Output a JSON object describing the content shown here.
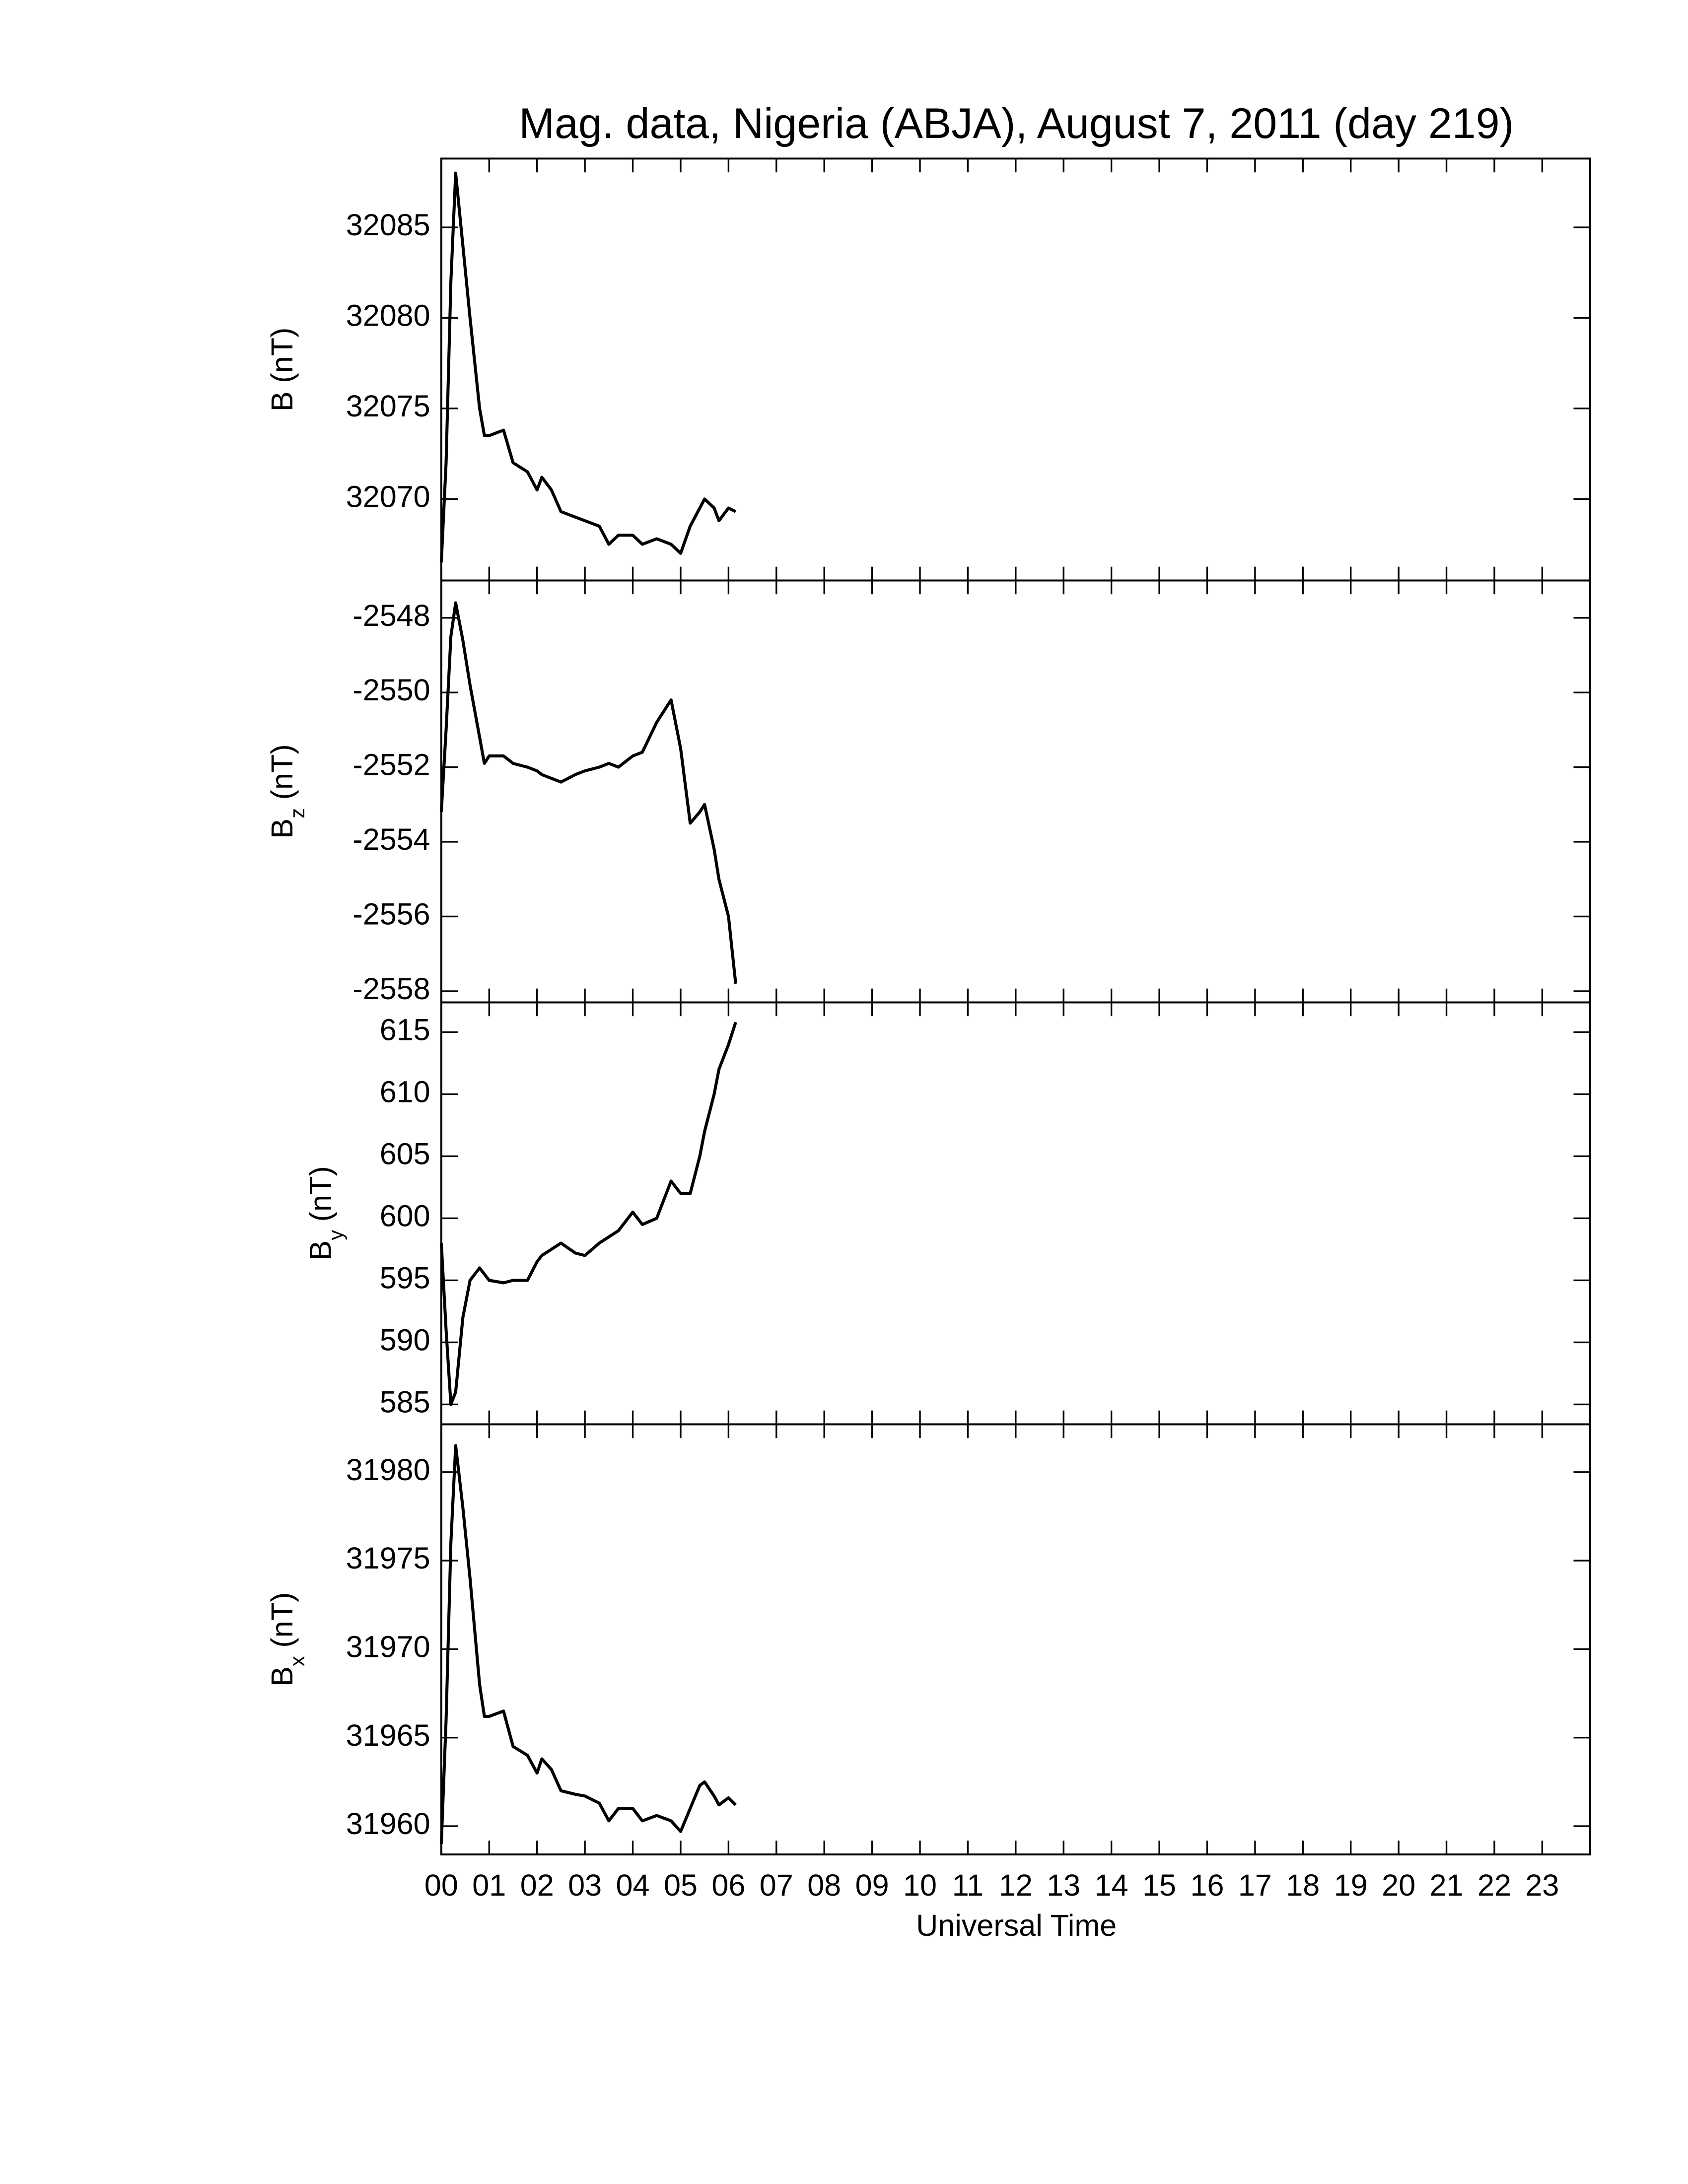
{
  "chart_data": [
    {
      "type": "line",
      "title": "Mag. data, Nigeria (ABJA), August 7, 2011 (day 219)",
      "ylabel": {
        "symbol": "B",
        "unit": "(nT)"
      },
      "x": [
        0,
        0.1,
        0.2,
        0.3,
        0.45,
        0.6,
        0.8,
        0.9,
        1.0,
        1.3,
        1.5,
        1.8,
        2.0,
        2.1,
        2.3,
        2.5,
        2.8,
        3.0,
        3.3,
        3.5,
        3.7,
        4.0,
        4.2,
        4.5,
        4.8,
        5.0,
        5.2,
        5.4,
        5.5,
        5.7,
        5.8,
        6.0,
        6.15
      ],
      "values": [
        32066.5,
        32072,
        32082,
        32088,
        32084,
        32080,
        32075,
        32073.5,
        32073.5,
        32073.8,
        32072,
        32071.5,
        32070.5,
        32071.2,
        32070.5,
        32069.3,
        32069,
        32068.8,
        32068.5,
        32067.5,
        32068,
        32068,
        32067.5,
        32067.8,
        32067.5,
        32067,
        32068.5,
        32069.5,
        32070,
        32069.5,
        32068.8,
        32069.5,
        32069.3
      ],
      "color": "#000000",
      "xlim": [
        0,
        24
      ],
      "ylim": [
        32065.5,
        32088.8
      ],
      "yticks": [
        32070,
        32075,
        32080,
        32085
      ]
    },
    {
      "type": "line",
      "ylabel": {
        "symbol": "B",
        "subscript": "z",
        "unit": "(nT)"
      },
      "x": [
        0,
        0.1,
        0.2,
        0.3,
        0.45,
        0.6,
        0.8,
        0.9,
        1.0,
        1.3,
        1.5,
        1.8,
        2.0,
        2.1,
        2.3,
        2.5,
        2.8,
        3.0,
        3.3,
        3.5,
        3.7,
        4.0,
        4.2,
        4.5,
        4.8,
        5.0,
        5.2,
        5.4,
        5.5,
        5.7,
        5.8,
        6.0,
        6.15
      ],
      "values": [
        -2553.2,
        -2551,
        -2548.5,
        -2547.6,
        -2548.6,
        -2549.8,
        -2551.2,
        -2551.9,
        -2551.7,
        -2551.7,
        -2551.9,
        -2552.0,
        -2552.1,
        -2552.2,
        -2552.3,
        -2552.4,
        -2552.2,
        -2552.1,
        -2552.0,
        -2551.9,
        -2552.0,
        -2551.7,
        -2551.6,
        -2550.8,
        -2550.2,
        -2551.5,
        -2553.5,
        -2553.2,
        -2553.0,
        -2554.2,
        -2555,
        -2556,
        -2557.8
      ],
      "color": "#000000",
      "xlim": [
        0,
        24
      ],
      "ylim": [
        -2558.3,
        -2547.0
      ],
      "yticks": [
        -2558,
        -2556,
        -2554,
        -2552,
        -2550,
        -2548
      ]
    },
    {
      "type": "line",
      "ylabel": {
        "symbol": "B",
        "subscript": "y",
        "unit": "(nT)"
      },
      "x": [
        0,
        0.1,
        0.2,
        0.3,
        0.45,
        0.6,
        0.8,
        0.9,
        1.0,
        1.3,
        1.5,
        1.8,
        2.0,
        2.1,
        2.3,
        2.5,
        2.8,
        3.0,
        3.3,
        3.5,
        3.7,
        4.0,
        4.2,
        4.5,
        4.8,
        5.0,
        5.2,
        5.4,
        5.5,
        5.7,
        5.8,
        6.0,
        6.15
      ],
      "values": [
        598,
        591,
        585,
        586,
        592,
        595,
        596,
        595.5,
        595,
        594.8,
        595,
        595,
        596.5,
        597,
        597.5,
        598,
        597.2,
        597,
        598,
        598.5,
        599,
        600.5,
        599.5,
        600,
        603,
        602,
        602,
        605,
        607,
        610,
        612,
        614,
        615.8
      ],
      "color": "#000000",
      "xlim": [
        0,
        24
      ],
      "ylim": [
        583.4,
        617.4
      ],
      "yticks": [
        585,
        590,
        595,
        600,
        605,
        610,
        615
      ]
    },
    {
      "type": "line",
      "ylabel": {
        "symbol": "B",
        "subscript": "x",
        "unit": "(nT)"
      },
      "xlabel": "Universal Time",
      "x": [
        0,
        0.1,
        0.2,
        0.3,
        0.45,
        0.6,
        0.8,
        0.9,
        1.0,
        1.3,
        1.5,
        1.8,
        2.0,
        2.1,
        2.3,
        2.5,
        2.8,
        3.0,
        3.3,
        3.5,
        3.7,
        4.0,
        4.2,
        4.5,
        4.8,
        5.0,
        5.2,
        5.4,
        5.5,
        5.7,
        5.8,
        6.0,
        6.15
      ],
      "values": [
        31959,
        31966,
        31976,
        31981.5,
        31978,
        31974,
        31968,
        31966.2,
        31966.2,
        31966.5,
        31964.5,
        31964,
        31963,
        31963.8,
        31963.2,
        31962,
        31961.8,
        31961.7,
        31961.3,
        31960.3,
        31961,
        31961,
        31960.3,
        31960.6,
        31960.3,
        31959.7,
        31961,
        31962.3,
        31962.5,
        31961.7,
        31961.2,
        31961.6,
        31961.2
      ],
      "color": "#000000",
      "xlim": [
        0,
        24
      ],
      "ylim": [
        31958.4,
        31982.7
      ],
      "yticks": [
        31960,
        31965,
        31970,
        31975,
        31980
      ],
      "xticks": [
        {
          "value": 0,
          "label": "00"
        },
        {
          "value": 1,
          "label": "01"
        },
        {
          "value": 2,
          "label": "02"
        },
        {
          "value": 3,
          "label": "03"
        },
        {
          "value": 4,
          "label": "04"
        },
        {
          "value": 5,
          "label": "05"
        },
        {
          "value": 6,
          "label": "06"
        },
        {
          "value": 7,
          "label": "07"
        },
        {
          "value": 8,
          "label": "08"
        },
        {
          "value": 9,
          "label": "09"
        },
        {
          "value": 10,
          "label": "10"
        },
        {
          "value": 11,
          "label": "11"
        },
        {
          "value": 12,
          "label": "12"
        },
        {
          "value": 13,
          "label": "13"
        },
        {
          "value": 14,
          "label": "14"
        },
        {
          "value": 15,
          "label": "15"
        },
        {
          "value": 16,
          "label": "16"
        },
        {
          "value": 17,
          "label": "17"
        },
        {
          "value": 18,
          "label": "18"
        },
        {
          "value": 19,
          "label": "19"
        },
        {
          "value": 20,
          "label": "20"
        },
        {
          "value": 21,
          "label": "21"
        },
        {
          "value": 22,
          "label": "22"
        },
        {
          "value": 23,
          "label": "23"
        }
      ]
    }
  ]
}
